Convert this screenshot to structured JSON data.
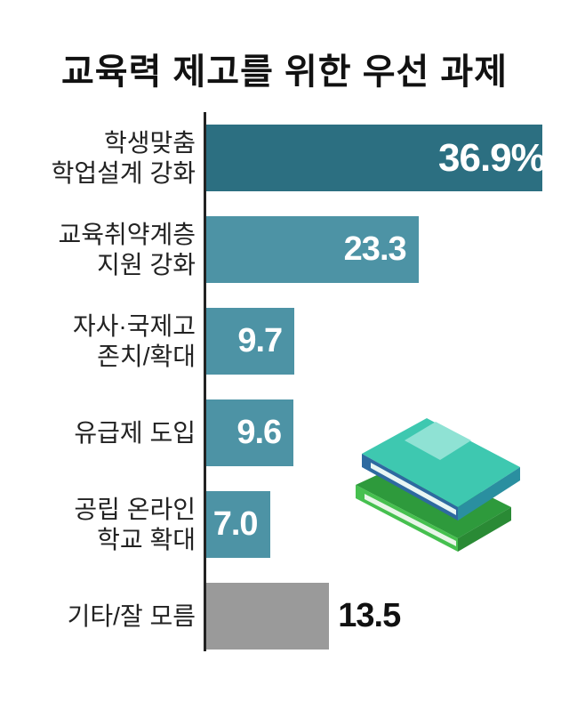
{
  "chart_data": {
    "type": "bar",
    "orientation": "horizontal",
    "title": "교육력 제고를 위한 우선 과제",
    "categories": [
      "학생맞춤\n학업설계 강화",
      "교육취약계층\n지원 강화",
      "자사·국제고\n존치/확대",
      "유급제 도입",
      "공립 온라인\n학교 확대",
      "기타/잘 모름"
    ],
    "values": [
      36.9,
      23.3,
      9.7,
      9.6,
      7.0,
      13.5
    ],
    "value_labels": [
      "36.9%",
      "23.3",
      "9.7",
      "9.6",
      "7.0",
      "13.5"
    ],
    "colors": [
      "#2c6f81",
      "#4d93a5",
      "#4d93a5",
      "#4d93a5",
      "#4d93a5",
      "#9a9a9a"
    ]
  }
}
